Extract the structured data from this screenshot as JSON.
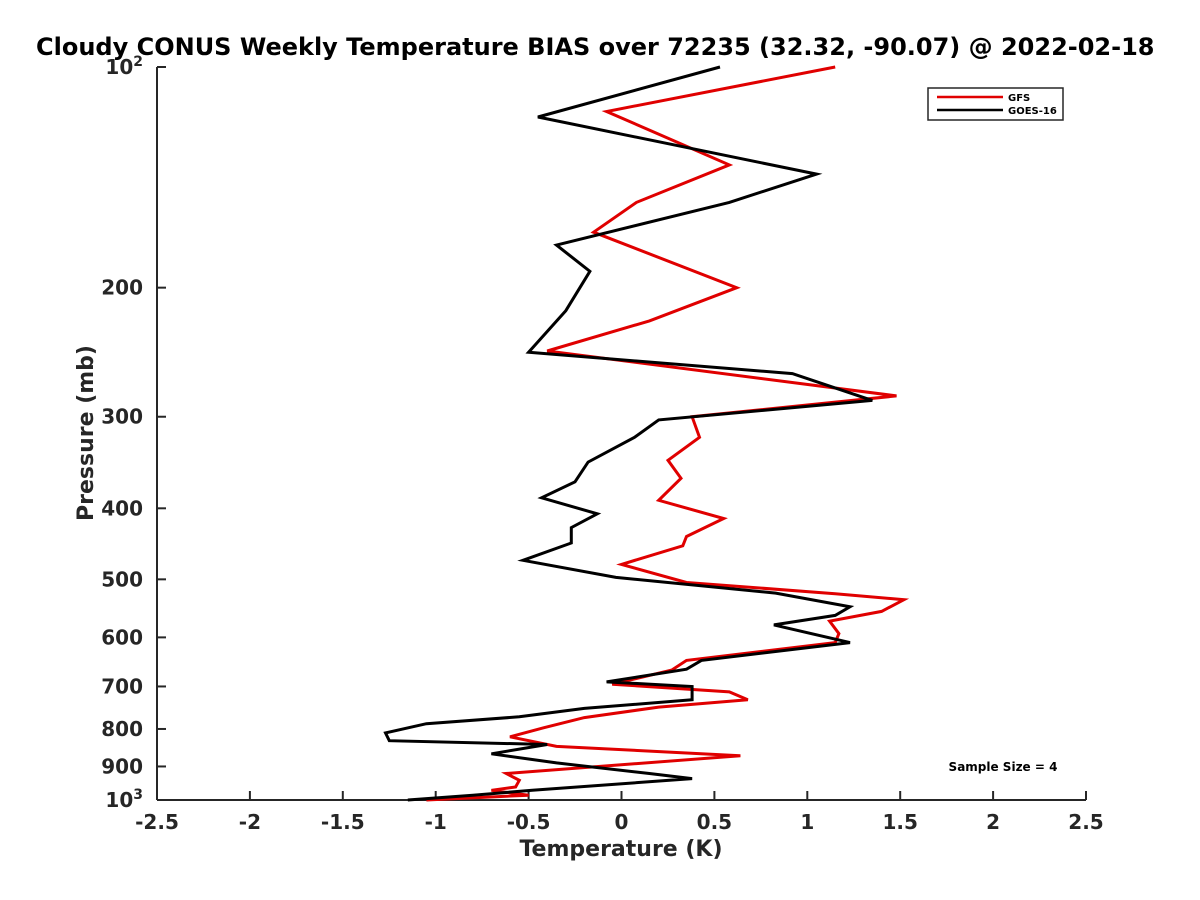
{
  "chart_data": {
    "type": "line",
    "title": "Cloudy CONUS Weekly Temperature BIAS over 72235 (32.32, -90.07) @ 2022-02-18",
    "xlabel": "Temperature (K)",
    "ylabel": "Pressure (mb)",
    "xlim": [
      -2.5,
      2.5
    ],
    "ylim": [
      100,
      1000
    ],
    "y_scale": "log",
    "y_reversed": true,
    "x_ticks": [
      -2.5,
      -2,
      -1.5,
      -1,
      -0.5,
      0,
      0.5,
      1,
      1.5,
      2,
      2.5
    ],
    "x_tick_labels": [
      "-2.5",
      "-2",
      "-1.5",
      "-1",
      "-0.5",
      "0",
      "0.5",
      "1",
      "1.5",
      "2",
      "2.5"
    ],
    "y_ticks": [
      100,
      200,
      300,
      400,
      500,
      600,
      700,
      800,
      900,
      1000
    ],
    "y_tick_labels": [
      {
        "base": "10",
        "exp": "2"
      },
      {
        "base": "200",
        "exp": ""
      },
      {
        "base": "300",
        "exp": ""
      },
      {
        "base": "400",
        "exp": ""
      },
      {
        "base": "500",
        "exp": ""
      },
      {
        "base": "600",
        "exp": ""
      },
      {
        "base": "700",
        "exp": ""
      },
      {
        "base": "800",
        "exp": ""
      },
      {
        "base": "900",
        "exp": ""
      },
      {
        "base": "10",
        "exp": "3"
      }
    ],
    "legend": {
      "position": "top-right"
    },
    "annotation": "Sample Size = 4",
    "series": [
      {
        "name": "GFS",
        "color": "#e00000",
        "points": [
          [
            1.15,
            100
          ],
          [
            -0.08,
            115
          ],
          [
            0.58,
            136
          ],
          [
            0.08,
            153
          ],
          [
            -0.15,
            168
          ],
          [
            0.62,
            200
          ],
          [
            0.15,
            222
          ],
          [
            -0.4,
            244
          ],
          [
            1.48,
            281
          ],
          [
            0.38,
            300
          ],
          [
            0.42,
            320
          ],
          [
            0.25,
            344
          ],
          [
            0.32,
            364
          ],
          [
            0.2,
            390
          ],
          [
            0.55,
            413
          ],
          [
            0.35,
            437
          ],
          [
            0.33,
            450
          ],
          [
            0,
            477
          ],
          [
            0.35,
            505
          ],
          [
            1.15,
            523
          ],
          [
            1.52,
            533
          ],
          [
            1.4,
            553
          ],
          [
            1.12,
            570
          ],
          [
            1.17,
            593
          ],
          [
            1.15,
            610
          ],
          [
            0.35,
            645
          ],
          [
            0.27,
            665
          ],
          [
            -0.05,
            695
          ],
          [
            0.58,
            712
          ],
          [
            0.68,
            730
          ],
          [
            0.2,
            747
          ],
          [
            -0.2,
            772
          ],
          [
            -0.42,
            797
          ],
          [
            -0.6,
            820
          ],
          [
            -0.35,
            845
          ],
          [
            0.64,
            870
          ],
          [
            -0.62,
            920
          ],
          [
            -0.55,
            940
          ],
          [
            -0.57,
            960
          ],
          [
            -0.7,
            970
          ],
          [
            -0.5,
            985
          ],
          [
            -1.05,
            1000
          ]
        ]
      },
      {
        "name": "GOES-16",
        "color": "#000000",
        "points": [
          [
            0.53,
            100
          ],
          [
            -0.45,
            117
          ],
          [
            1.05,
            140
          ],
          [
            0.58,
            153
          ],
          [
            -0.35,
            175
          ],
          [
            -0.17,
            190
          ],
          [
            -0.3,
            215
          ],
          [
            -0.5,
            245
          ],
          [
            0.92,
            262
          ],
          [
            1.35,
            285
          ],
          [
            0.2,
            303
          ],
          [
            0.07,
            320
          ],
          [
            -0.18,
            346
          ],
          [
            -0.25,
            368
          ],
          [
            -0.43,
            387
          ],
          [
            -0.13,
            407
          ],
          [
            -0.27,
            425
          ],
          [
            -0.27,
            446
          ],
          [
            -0.53,
            471
          ],
          [
            -0.03,
            497
          ],
          [
            0.83,
            522
          ],
          [
            1.23,
            545
          ],
          [
            1.15,
            560
          ],
          [
            0.82,
            577
          ],
          [
            1.23,
            610
          ],
          [
            0.43,
            645
          ],
          [
            0.35,
            663
          ],
          [
            -0.08,
            690
          ],
          [
            0.38,
            700
          ],
          [
            0.38,
            730
          ],
          [
            -0.2,
            750
          ],
          [
            -0.55,
            770
          ],
          [
            -1.05,
            787
          ],
          [
            -1.27,
            810
          ],
          [
            -1.25,
            830
          ],
          [
            -0.4,
            840
          ],
          [
            -0.7,
            865
          ],
          [
            -0.35,
            890
          ],
          [
            0.15,
            920
          ],
          [
            0.38,
            935
          ],
          [
            -0.48,
            970
          ],
          [
            -0.8,
            985
          ],
          [
            -1.15,
            1000
          ]
        ]
      }
    ]
  }
}
